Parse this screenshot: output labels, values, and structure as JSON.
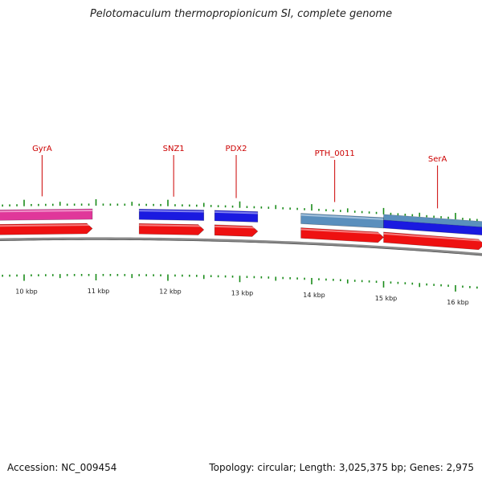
{
  "title": "Pelotomaculum thermopropionicum SI, complete genome",
  "footer": {
    "accession": "Accession: NC_009454",
    "summary": "Topology: circular; Length: 3,025,375 bp; Genes: 2,975"
  },
  "colors": {
    "label": "#cc0000",
    "tick": "#1a8c1a",
    "backbone": "#8a8a8a",
    "gene_pink": "#e0379a",
    "gene_blue": "#1a1ae0",
    "gene_steel": "#5a8fbd",
    "cds_red": "#ee1111"
  },
  "gene_labels": [
    {
      "id": "gyra",
      "text": "GyrA",
      "kb": 10.25
    },
    {
      "id": "snz1",
      "text": "SNZ1",
      "kb": 12.08
    },
    {
      "id": "pdx2",
      "text": "PDX2",
      "kb": 12.95
    },
    {
      "id": "pth-0011",
      "text": "PTH_0011",
      "kb": 14.32
    },
    {
      "id": "sera",
      "text": "SerA",
      "kb": 15.75
    }
  ],
  "scale_labels": [
    {
      "id": "10",
      "text": "10 kbp",
      "kb": 10
    },
    {
      "id": "11",
      "text": "11 kbp",
      "kb": 11
    },
    {
      "id": "12",
      "text": "12 kbp",
      "kb": 12
    },
    {
      "id": "13",
      "text": "13 kbp",
      "kb": 13
    },
    {
      "id": "14",
      "text": "14 kbp",
      "kb": 14
    },
    {
      "id": "15",
      "text": "15 kbp",
      "kb": 15
    },
    {
      "id": "16",
      "text": "16 kbp",
      "kb": 16
    }
  ],
  "features": [
    {
      "name": "gyra-feature",
      "start": 9.5,
      "end": 10.95,
      "color": "gene_pink",
      "strand": "+"
    },
    {
      "name": "snz1-feature",
      "start": 11.6,
      "end": 12.5,
      "color": "gene_blue",
      "strand": "+"
    },
    {
      "name": "pdx2-feature",
      "start": 12.65,
      "end": 13.25,
      "color": "gene_blue",
      "strand": "+"
    },
    {
      "name": "pth-0011-feature",
      "start": 13.85,
      "end": 15.0,
      "color": "gene_steel",
      "strand": "+"
    },
    {
      "name": "sera-feature",
      "start": 15.0,
      "end": 16.4,
      "color": "gene_blue",
      "strand": "+",
      "overlay": "gene_steel"
    },
    {
      "name": "cds-1",
      "start": 9.5,
      "end": 10.95,
      "color": "cds_red",
      "strand": "+",
      "track": "cds"
    },
    {
      "name": "cds-2",
      "start": 11.6,
      "end": 12.5,
      "color": "cds_red",
      "strand": "+",
      "track": "cds"
    },
    {
      "name": "cds-3",
      "start": 12.65,
      "end": 13.25,
      "color": "cds_red",
      "strand": "+",
      "track": "cds"
    },
    {
      "name": "cds-4",
      "start": 13.85,
      "end": 15.0,
      "color": "cds_red",
      "strand": "+",
      "track": "cds"
    },
    {
      "name": "cds-5",
      "start": 15.0,
      "end": 16.4,
      "color": "cds_red",
      "strand": "+",
      "track": "cds"
    }
  ]
}
